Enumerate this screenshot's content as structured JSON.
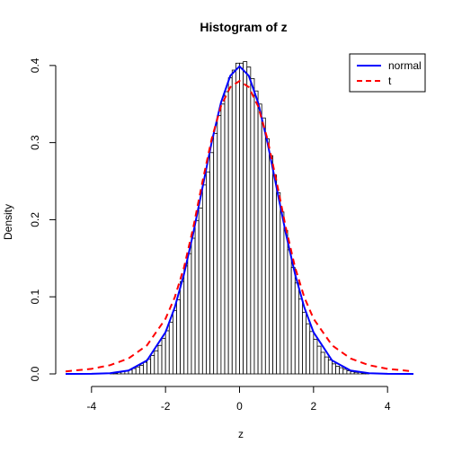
{
  "chart_data": {
    "type": "histogram",
    "title": "Histogram of z",
    "xlabel": "z",
    "ylabel": "Density",
    "xlim": [
      -4.7,
      4.7
    ],
    "ylim": [
      0,
      0.415
    ],
    "x_ticks": [
      -4,
      -2,
      0,
      2,
      4
    ],
    "x_tick_labels": [
      "-4",
      "-2",
      "0",
      "2",
      "4"
    ],
    "y_ticks": [
      0,
      0.1,
      0.2,
      0.3,
      0.4
    ],
    "y_tick_labels": [
      "0.0",
      "0.1",
      "0.2",
      "0.3",
      "0.4"
    ],
    "grid": false,
    "legend_position": "top-right",
    "histogram": {
      "bin_width": 0.1,
      "bins": [
        {
          "x0": -3.5,
          "x1": -3.4,
          "density": 0.001
        },
        {
          "x0": -3.4,
          "x1": -3.3,
          "density": 0.001
        },
        {
          "x0": -3.3,
          "x1": -3.2,
          "density": 0.002
        },
        {
          "x0": -3.2,
          "x1": -3.1,
          "density": 0.003
        },
        {
          "x0": -3.1,
          "x1": -3.0,
          "density": 0.004
        },
        {
          "x0": -3.0,
          "x1": -2.9,
          "density": 0.005
        },
        {
          "x0": -2.9,
          "x1": -2.8,
          "density": 0.007
        },
        {
          "x0": -2.8,
          "x1": -2.7,
          "density": 0.009
        },
        {
          "x0": -2.7,
          "x1": -2.6,
          "density": 0.011
        },
        {
          "x0": -2.6,
          "x1": -2.5,
          "density": 0.015
        },
        {
          "x0": -2.5,
          "x1": -2.4,
          "density": 0.019
        },
        {
          "x0": -2.4,
          "x1": -2.3,
          "density": 0.024
        },
        {
          "x0": -2.3,
          "x1": -2.2,
          "density": 0.03
        },
        {
          "x0": -2.2,
          "x1": -2.1,
          "density": 0.037
        },
        {
          "x0": -2.1,
          "x1": -2.0,
          "density": 0.046
        },
        {
          "x0": -2.0,
          "x1": -1.9,
          "density": 0.056
        },
        {
          "x0": -1.9,
          "x1": -1.8,
          "density": 0.067
        },
        {
          "x0": -1.8,
          "x1": -1.7,
          "density": 0.082
        },
        {
          "x0": -1.7,
          "x1": -1.6,
          "density": 0.096
        },
        {
          "x0": -1.6,
          "x1": -1.5,
          "density": 0.12
        },
        {
          "x0": -1.5,
          "x1": -1.4,
          "density": 0.14
        },
        {
          "x0": -1.4,
          "x1": -1.3,
          "density": 0.156
        },
        {
          "x0": -1.3,
          "x1": -1.2,
          "density": 0.176
        },
        {
          "x0": -1.2,
          "x1": -1.1,
          "density": 0.199
        },
        {
          "x0": -1.1,
          "x1": -1.0,
          "density": 0.215
        },
        {
          "x0": -1.0,
          "x1": -0.9,
          "density": 0.245
        },
        {
          "x0": -0.9,
          "x1": -0.8,
          "density": 0.262
        },
        {
          "x0": -0.8,
          "x1": -0.7,
          "density": 0.287
        },
        {
          "x0": -0.7,
          "x1": -0.6,
          "density": 0.312
        },
        {
          "x0": -0.6,
          "x1": -0.5,
          "density": 0.335
        },
        {
          "x0": -0.5,
          "x1": -0.4,
          "density": 0.35
        },
        {
          "x0": -0.4,
          "x1": -0.3,
          "density": 0.366
        },
        {
          "x0": -0.3,
          "x1": -0.2,
          "density": 0.384
        },
        {
          "x0": -0.2,
          "x1": -0.1,
          "density": 0.394
        },
        {
          "x0": -0.1,
          "x1": 0.0,
          "density": 0.403
        },
        {
          "x0": 0.0,
          "x1": 0.1,
          "density": 0.403
        },
        {
          "x0": 0.1,
          "x1": 0.2,
          "density": 0.405
        },
        {
          "x0": 0.2,
          "x1": 0.3,
          "density": 0.398
        },
        {
          "x0": 0.3,
          "x1": 0.4,
          "density": 0.383
        },
        {
          "x0": 0.4,
          "x1": 0.5,
          "density": 0.367
        },
        {
          "x0": 0.5,
          "x1": 0.6,
          "density": 0.35
        },
        {
          "x0": 0.6,
          "x1": 0.7,
          "density": 0.332
        },
        {
          "x0": 0.7,
          "x1": 0.8,
          "density": 0.305
        },
        {
          "x0": 0.8,
          "x1": 0.9,
          "density": 0.283
        },
        {
          "x0": 0.9,
          "x1": 1.0,
          "density": 0.258
        },
        {
          "x0": 1.0,
          "x1": 1.1,
          "density": 0.235
        },
        {
          "x0": 1.1,
          "x1": 1.2,
          "density": 0.21
        },
        {
          "x0": 1.2,
          "x1": 1.3,
          "density": 0.186
        },
        {
          "x0": 1.3,
          "x1": 1.4,
          "density": 0.161
        },
        {
          "x0": 1.4,
          "x1": 1.5,
          "density": 0.138
        },
        {
          "x0": 1.5,
          "x1": 1.6,
          "density": 0.118
        },
        {
          "x0": 1.6,
          "x1": 1.7,
          "density": 0.097
        },
        {
          "x0": 1.7,
          "x1": 1.8,
          "density": 0.08
        },
        {
          "x0": 1.8,
          "x1": 1.9,
          "density": 0.065
        },
        {
          "x0": 1.9,
          "x1": 2.0,
          "density": 0.055
        },
        {
          "x0": 2.0,
          "x1": 2.1,
          "density": 0.045
        },
        {
          "x0": 2.1,
          "x1": 2.2,
          "density": 0.036
        },
        {
          "x0": 2.2,
          "x1": 2.3,
          "density": 0.028
        },
        {
          "x0": 2.3,
          "x1": 2.4,
          "density": 0.022
        },
        {
          "x0": 2.4,
          "x1": 2.5,
          "density": 0.018
        },
        {
          "x0": 2.5,
          "x1": 2.6,
          "density": 0.013
        },
        {
          "x0": 2.6,
          "x1": 2.7,
          "density": 0.01
        },
        {
          "x0": 2.7,
          "x1": 2.8,
          "density": 0.008
        },
        {
          "x0": 2.8,
          "x1": 2.9,
          "density": 0.006
        },
        {
          "x0": 2.9,
          "x1": 3.0,
          "density": 0.004
        },
        {
          "x0": 3.0,
          "x1": 3.1,
          "density": 0.003
        },
        {
          "x0": 3.1,
          "x1": 3.2,
          "density": 0.002
        },
        {
          "x0": 3.2,
          "x1": 3.3,
          "density": 0.002
        },
        {
          "x0": 3.3,
          "x1": 3.4,
          "density": 0.001
        },
        {
          "x0": 3.4,
          "x1": 3.5,
          "density": 0.001
        }
      ]
    },
    "series": [
      {
        "name": "normal",
        "type": "line",
        "color": "#0000ff",
        "dash": "solid",
        "points": [
          [
            -4.7,
            0.0
          ],
          [
            -4.0,
            0.0001
          ],
          [
            -3.5,
            0.0009
          ],
          [
            -3.0,
            0.0044
          ],
          [
            -2.5,
            0.0175
          ],
          [
            -2.0,
            0.054
          ],
          [
            -1.75,
            0.0863
          ],
          [
            -1.5,
            0.1295
          ],
          [
            -1.25,
            0.1826
          ],
          [
            -1.0,
            0.242
          ],
          [
            -0.75,
            0.3011
          ],
          [
            -0.5,
            0.3521
          ],
          [
            -0.25,
            0.3867
          ],
          [
            0.0,
            0.3989
          ],
          [
            0.25,
            0.3867
          ],
          [
            0.5,
            0.3521
          ],
          [
            0.75,
            0.3011
          ],
          [
            1.0,
            0.242
          ],
          [
            1.25,
            0.1826
          ],
          [
            1.5,
            0.1295
          ],
          [
            1.75,
            0.0863
          ],
          [
            2.0,
            0.054
          ],
          [
            2.5,
            0.0175
          ],
          [
            3.0,
            0.0044
          ],
          [
            3.5,
            0.0009
          ],
          [
            4.0,
            0.0001
          ],
          [
            4.7,
            0.0
          ]
        ]
      },
      {
        "name": "t",
        "type": "line",
        "color": "#ff0000",
        "dash": "dashed",
        "points": [
          [
            -4.7,
            0.0032
          ],
          [
            -4.0,
            0.0066
          ],
          [
            -3.5,
            0.0113
          ],
          [
            -3.0,
            0.02
          ],
          [
            -2.5,
            0.0371
          ],
          [
            -2.0,
            0.0716
          ],
          [
            -1.75,
            0.0994
          ],
          [
            -1.5,
            0.1383
          ],
          [
            -1.25,
            0.19
          ],
          [
            -1.0,
            0.2497
          ],
          [
            -0.75,
            0.3054
          ],
          [
            -0.5,
            0.3474
          ],
          [
            -0.25,
            0.3719
          ],
          [
            0.0,
            0.38
          ],
          [
            0.25,
            0.3719
          ],
          [
            0.5,
            0.3474
          ],
          [
            0.75,
            0.3054
          ],
          [
            1.0,
            0.2497
          ],
          [
            1.25,
            0.19
          ],
          [
            1.5,
            0.1383
          ],
          [
            1.75,
            0.0994
          ],
          [
            2.0,
            0.0716
          ],
          [
            2.5,
            0.0371
          ],
          [
            3.0,
            0.02
          ],
          [
            3.5,
            0.0113
          ],
          [
            4.0,
            0.0066
          ],
          [
            4.7,
            0.0032
          ]
        ]
      }
    ]
  }
}
